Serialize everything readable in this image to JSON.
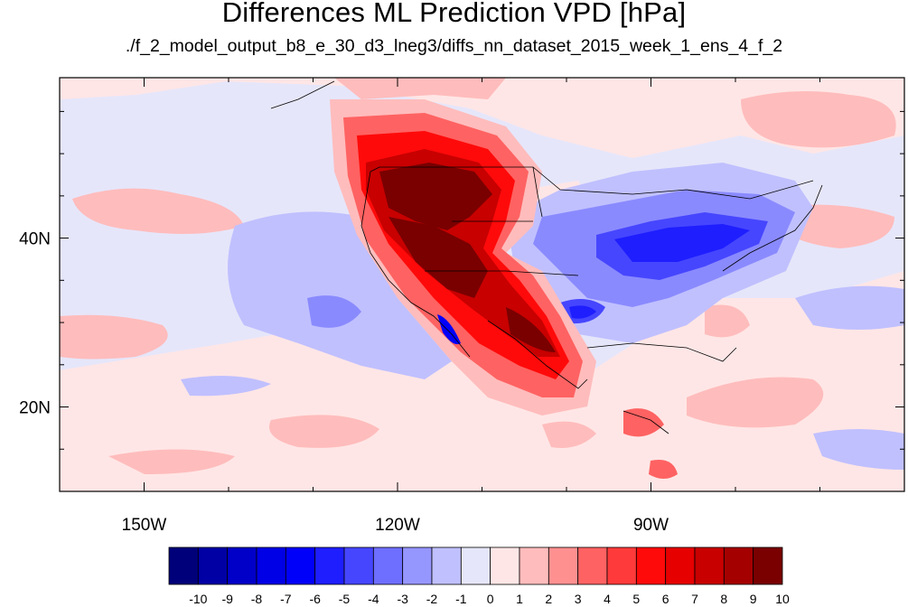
{
  "title": "Differences ML Prediction VPD [hPa]",
  "subtitle": "./f_2_model_output_b8_e_30_d3_lneg3/diffs_nn_dataset_2015_week_1_ens_4_f_2",
  "map": {
    "lon_range": [
      -160,
      -60
    ],
    "lat_range": [
      10,
      59
    ],
    "x_ticks": [
      {
        "lon": -150,
        "label": "150W"
      },
      {
        "lon": -120,
        "label": "120W"
      },
      {
        "lon": -90,
        "label": "90W"
      }
    ],
    "y_ticks": [
      {
        "lat": 40,
        "label": "40N"
      },
      {
        "lat": 20,
        "label": "20N"
      }
    ]
  },
  "colorbar": {
    "labels": [
      "-10",
      "-9",
      "-8",
      "-7",
      "-6",
      "-5",
      "-4",
      "-3",
      "-2",
      "-1",
      "0",
      "1",
      "2",
      "3",
      "4",
      "5",
      "6",
      "7",
      "8",
      "9",
      "10"
    ],
    "colors": [
      "#00007a",
      "#0000a5",
      "#0000c8",
      "#0000e6",
      "#0000fa",
      "#1e1eff",
      "#4646ff",
      "#6e6eff",
      "#9696ff",
      "#c0c0ff",
      "#e6e6fa",
      "#ffe6e6",
      "#ffbcbc",
      "#ff9090",
      "#ff6262",
      "#ff3a3a",
      "#ff0a0a",
      "#e60000",
      "#c80000",
      "#a50000",
      "#7a0000"
    ]
  }
}
